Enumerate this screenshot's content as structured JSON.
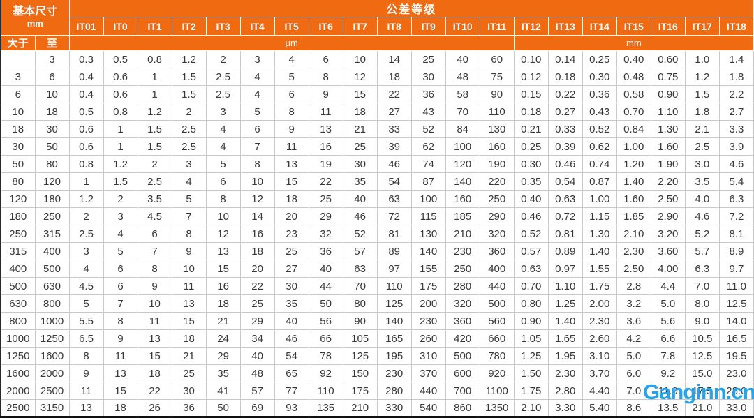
{
  "chart_data": {
    "type": "table",
    "header": {
      "basic_size_label": "基本尺寸",
      "basic_size_unit": "mm",
      "span_label": "公差等级",
      "from_label": "大于",
      "to_label": "至",
      "micron_unit_label": "μm",
      "mm_unit_label": "mm",
      "grade_columns": [
        "IT01",
        "IT0",
        "IT1",
        "IT2",
        "IT3",
        "IT4",
        "IT5",
        "IT6",
        "IT7",
        "IT8",
        "IT9",
        "IT10",
        "IT11",
        "IT12",
        "IT13",
        "IT14",
        "IT15",
        "IT16",
        "IT17",
        "IT18"
      ]
    },
    "rows": [
      {
        "from": "",
        "to": "3",
        "values": [
          "0.3",
          "0.5",
          "0.8",
          "1.2",
          "2",
          "3",
          "4",
          "6",
          "10",
          "14",
          "25",
          "40",
          "60",
          "0.10",
          "0.14",
          "0.25",
          "0.40",
          "0.60",
          "1.0",
          "1.4"
        ]
      },
      {
        "from": "3",
        "to": "6",
        "values": [
          "0.4",
          "0.6",
          "1",
          "1.5",
          "2.5",
          "4",
          "5",
          "8",
          "12",
          "18",
          "30",
          "48",
          "75",
          "0.12",
          "0.18",
          "0.30",
          "0.48",
          "0.75",
          "1.2",
          "1.8"
        ]
      },
      {
        "from": "6",
        "to": "10",
        "values": [
          "0.4",
          "0.6",
          "1",
          "1.5",
          "2.5",
          "4",
          "6",
          "9",
          "15",
          "22",
          "36",
          "58",
          "90",
          "0.15",
          "0.22",
          "0.36",
          "0.58",
          "0.90",
          "1.5",
          "2.2"
        ]
      },
      {
        "from": "10",
        "to": "18",
        "values": [
          "0.5",
          "0.8",
          "1.2",
          "2",
          "3",
          "5",
          "8",
          "11",
          "18",
          "27",
          "43",
          "70",
          "110",
          "0.18",
          "0.27",
          "0.43",
          "0.70",
          "1.10",
          "1.8",
          "2.7"
        ]
      },
      {
        "from": "18",
        "to": "30",
        "values": [
          "0.6",
          "1",
          "1.5",
          "2.5",
          "4",
          "6",
          "9",
          "13",
          "21",
          "33",
          "52",
          "84",
          "130",
          "0.21",
          "0.33",
          "0.52",
          "0.84",
          "1.30",
          "2.1",
          "3.3"
        ]
      },
      {
        "from": "30",
        "to": "50",
        "values": [
          "0.6",
          "1",
          "1.5",
          "2.5",
          "4",
          "7",
          "11",
          "16",
          "25",
          "39",
          "62",
          "100",
          "160",
          "0.25",
          "0.39",
          "0.62",
          "1.00",
          "1.60",
          "2.5",
          "3.9"
        ]
      },
      {
        "from": "50",
        "to": "80",
        "values": [
          "0.8",
          "1.2",
          "2",
          "3",
          "5",
          "8",
          "13",
          "19",
          "30",
          "46",
          "74",
          "120",
          "190",
          "0.30",
          "0.46",
          "0.74",
          "1.20",
          "1.90",
          "3.0",
          "4.6"
        ]
      },
      {
        "from": "80",
        "to": "120",
        "values": [
          "1",
          "1.5",
          "2.5",
          "4",
          "6",
          "10",
          "15",
          "22",
          "35",
          "54",
          "87",
          "140",
          "220",
          "0.35",
          "0.54",
          "0.87",
          "1.40",
          "2.20",
          "3.5",
          "5.4"
        ]
      },
      {
        "from": "120",
        "to": "180",
        "values": [
          "1.2",
          "2",
          "3.5",
          "5",
          "8",
          "12",
          "18",
          "25",
          "40",
          "63",
          "100",
          "160",
          "250",
          "0.40",
          "0.63",
          "1.00",
          "1.60",
          "2.50",
          "4.0",
          "6.3"
        ]
      },
      {
        "from": "180",
        "to": "250",
        "values": [
          "2",
          "3",
          "4.5",
          "7",
          "10",
          "14",
          "20",
          "29",
          "46",
          "72",
          "115",
          "185",
          "290",
          "0.46",
          "0.72",
          "1.15",
          "1.85",
          "2.90",
          "4.6",
          "7.2"
        ]
      },
      {
        "from": "250",
        "to": "315",
        "values": [
          "2.5",
          "4",
          "6",
          "8",
          "12",
          "16",
          "23",
          "32",
          "52",
          "81",
          "130",
          "210",
          "320",
          "0.52",
          "0.81",
          "1.30",
          "2.10",
          "3.20",
          "5.2",
          "8.1"
        ]
      },
      {
        "from": "315",
        "to": "400",
        "values": [
          "3",
          "5",
          "7",
          "9",
          "13",
          "18",
          "25",
          "36",
          "57",
          "89",
          "140",
          "230",
          "360",
          "0.57",
          "0.89",
          "1.40",
          "2.30",
          "3.60",
          "5.7",
          "8.9"
        ]
      },
      {
        "from": "400",
        "to": "500",
        "values": [
          "4",
          "6",
          "8",
          "10",
          "15",
          "20",
          "27",
          "40",
          "63",
          "97",
          "155",
          "250",
          "400",
          "0.63",
          "0.97",
          "1.55",
          "2.50",
          "4.00",
          "6.3",
          "9.7"
        ]
      },
      {
        "from": "500",
        "to": "630",
        "values": [
          "4.5",
          "6",
          "9",
          "11",
          "16",
          "22",
          "30",
          "44",
          "70",
          "110",
          "175",
          "280",
          "440",
          "0.70",
          "1.10",
          "1.75",
          "2.8",
          "4.4",
          "7.0",
          "11.0"
        ]
      },
      {
        "from": "630",
        "to": "800",
        "values": [
          "5",
          "7",
          "10",
          "13",
          "18",
          "25",
          "35",
          "50",
          "80",
          "125",
          "200",
          "320",
          "500",
          "0.80",
          "1.25",
          "2.00",
          "3.2",
          "5.0",
          "8.0",
          "12.5"
        ]
      },
      {
        "from": "800",
        "to": "1000",
        "values": [
          "5.5",
          "8",
          "11",
          "15",
          "21",
          "29",
          "40",
          "56",
          "90",
          "140",
          "230",
          "360",
          "560",
          "0.90",
          "1.40",
          "2.30",
          "3.6",
          "5.6",
          "9.0",
          "14.0"
        ]
      },
      {
        "from": "1000",
        "to": "1250",
        "values": [
          "6.5",
          "9",
          "13",
          "18",
          "24",
          "34",
          "46",
          "66",
          "105",
          "165",
          "260",
          "420",
          "660",
          "1.05",
          "1.65",
          "2.60",
          "4.2",
          "6.6",
          "10.5",
          "16.5"
        ]
      },
      {
        "from": "1250",
        "to": "1600",
        "values": [
          "8",
          "11",
          "15",
          "21",
          "29",
          "40",
          "54",
          "78",
          "125",
          "195",
          "310",
          "500",
          "780",
          "1.25",
          "1.95",
          "3.10",
          "5.0",
          "7.8",
          "12.5",
          "19.5"
        ]
      },
      {
        "from": "1600",
        "to": "2000",
        "values": [
          "9",
          "13",
          "18",
          "25",
          "35",
          "48",
          "65",
          "92",
          "150",
          "230",
          "370",
          "600",
          "920",
          "1.50",
          "2.30",
          "3.70",
          "6.0",
          "9.2",
          "15.0",
          "23.0"
        ]
      },
      {
        "from": "2000",
        "to": "2500",
        "values": [
          "11",
          "15",
          "22",
          "30",
          "41",
          "57",
          "77",
          "110",
          "175",
          "280",
          "440",
          "700",
          "1100",
          "1.75",
          "2.80",
          "4.40",
          "7.0",
          "11.0",
          "17.5",
          "28.0"
        ]
      },
      {
        "from": "2500",
        "to": "3150",
        "values": [
          "13",
          "18",
          "26",
          "36",
          "50",
          "69",
          "93",
          "135",
          "210",
          "330",
          "540",
          "860",
          "1350",
          "2.10",
          "3.30",
          "5.40",
          "8.6",
          "13.5",
          "21.0",
          "33.0"
        ]
      }
    ]
  },
  "watermark": {
    "text": "Ganginn.cn",
    "color": "#29A3E8"
  },
  "colors": {
    "header_bg": "#F06A12",
    "header_text": "#FFFFFF",
    "grid": "#C9C9C9",
    "body_text": "#383838"
  }
}
